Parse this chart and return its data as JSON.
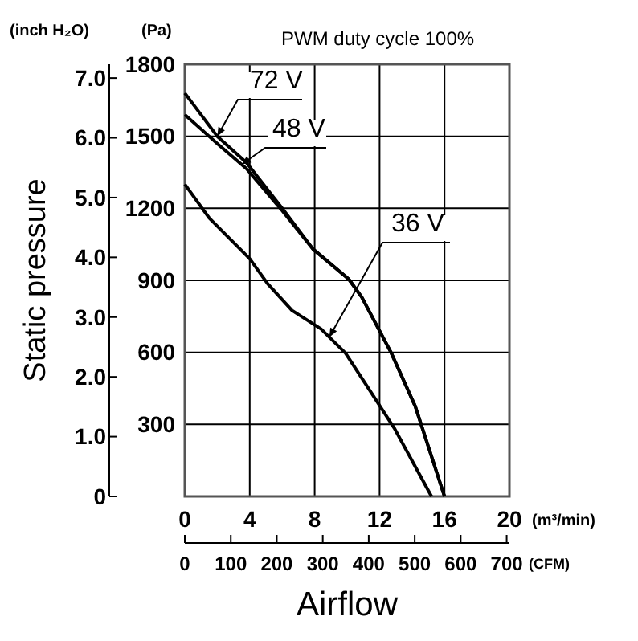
{
  "chart_data": {
    "type": "line",
    "title": "PWM duty cycle 100%",
    "xlabel": "(m³/min)",
    "ylabel": "(Pa)",
    "y2label": "(inch H₂O)",
    "x2label": "(CFM)",
    "annotations": [
      "Static pressure",
      "Airflow"
    ],
    "xlim": [
      0,
      20
    ],
    "xticks": [
      0,
      4,
      8,
      12,
      16,
      20
    ],
    "ylim": [
      0,
      1800
    ],
    "yticks": [
      {
        "value": 0,
        "label": null
      },
      300,
      600,
      900,
      1200,
      1500,
      1800
    ],
    "y2lim": [
      0,
      7.23
    ],
    "y2ticks": [
      0,
      {
        "value": 1,
        "label": "1.0"
      },
      {
        "value": 2,
        "label": "2.0"
      },
      {
        "value": 3,
        "label": "3.0"
      },
      {
        "value": 4,
        "label": "4.0"
      },
      {
        "value": 5,
        "label": "5.0"
      },
      {
        "value": 6,
        "label": "6.0"
      },
      {
        "value": 7,
        "label": "7.0"
      }
    ],
    "x2lim": [
      0,
      706
    ],
    "x2ticks": [
      0,
      100,
      200,
      300,
      400,
      500,
      600,
      700
    ],
    "grid": true,
    "series": [
      {
        "name": "72 V",
        "color": "#000000",
        "x": [
          0,
          2,
          3.8,
          6,
          7.9,
          10.1,
          10.9,
          12.7,
          14.2,
          16
        ],
        "values": [
          1680,
          1500,
          1390,
          1200,
          1030,
          905,
          830,
          600,
          375,
          0
        ]
      },
      {
        "name": "48 V",
        "color": "#000000",
        "x": [
          0,
          2,
          3.8,
          6,
          7.9,
          10.1,
          10.9,
          12.7,
          14.2,
          16
        ],
        "values": [
          1590,
          1470,
          1365,
          1190,
          1030,
          905,
          830,
          600,
          375,
          0
        ]
      },
      {
        "name": "36 V",
        "color": "#000000",
        "x": [
          0,
          1.5,
          4,
          5.1,
          6.6,
          8.4,
          9.9,
          11.4,
          12.9,
          15.2
        ],
        "values": [
          1300,
          1160,
          990,
          886,
          775,
          697,
          597,
          441,
          285,
          0
        ]
      }
    ]
  }
}
